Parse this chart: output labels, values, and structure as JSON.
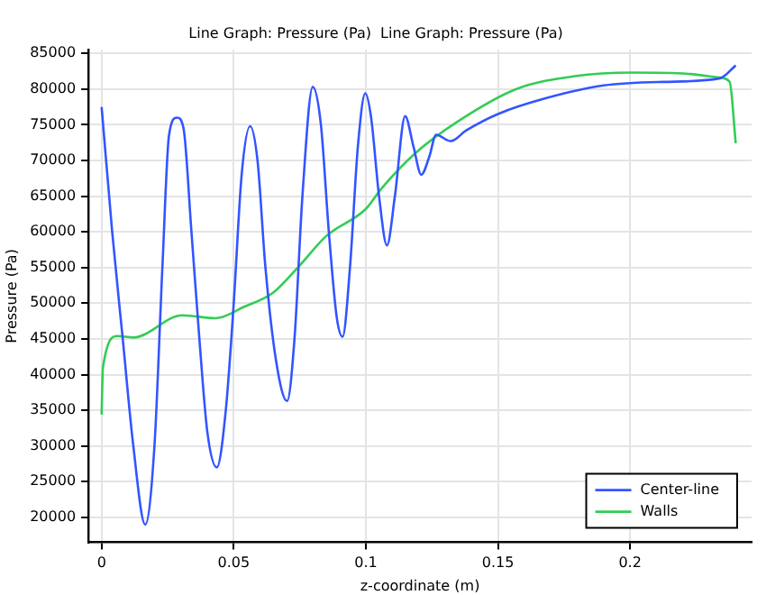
{
  "chart_data": {
    "type": "line",
    "title": "Line Graph: Pressure (Pa)  Line Graph: Pressure (Pa)",
    "xlabel": "z-coordinate (m)",
    "ylabel": "Pressure (Pa)",
    "xlim": [
      -0.005,
      0.246
    ],
    "ylim": [
      16500,
      85500
    ],
    "xticks": [
      0,
      0.05,
      0.1,
      0.15,
      0.2
    ],
    "yticks": [
      20000,
      25000,
      30000,
      35000,
      40000,
      45000,
      50000,
      55000,
      60000,
      65000,
      70000,
      75000,
      80000,
      85000
    ],
    "grid": true,
    "legend": "bottom right",
    "marker": "none",
    "line_style": "solid",
    "series": [
      {
        "name": "Center-line",
        "color": "#3355ff",
        "x": [
          0,
          0.004,
          0.008,
          0.012,
          0.0165,
          0.02,
          0.023,
          0.0255,
          0.0285,
          0.031,
          0.034,
          0.037,
          0.04,
          0.0436,
          0.047,
          0.05,
          0.053,
          0.0562,
          0.059,
          0.062,
          0.066,
          0.0702,
          0.073,
          0.076,
          0.0799,
          0.083,
          0.086,
          0.089,
          0.0912,
          0.094,
          0.097,
          0.0998,
          0.102,
          0.105,
          0.108,
          0.111,
          0.1149,
          0.118,
          0.121,
          0.124,
          0.1266,
          0.1321,
          0.138,
          0.15,
          0.168,
          0.19,
          0.2125,
          0.234,
          0.24
        ],
        "values": [
          77500,
          60000,
          45000,
          30000,
          19000,
          30000,
          55000,
          73500,
          76000,
          74500,
          60000,
          45000,
          32000,
          27000,
          35000,
          50000,
          68000,
          74800,
          70000,
          55000,
          42000,
          36300,
          45000,
          65000,
          80300,
          75000,
          60000,
          48000,
          45300,
          55000,
          72000,
          79400,
          76000,
          65000,
          58100,
          65000,
          76200,
          72000,
          68000,
          70500,
          73600,
          72700,
          74200,
          76500,
          78700,
          80500,
          81000,
          81500,
          83300
        ]
      },
      {
        "name": "Walls",
        "color": "#33cc55",
        "x": [
          0,
          0.0005,
          0.006,
          0.012,
          0.0305,
          0.0432,
          0.054,
          0.065,
          0.075,
          0.085,
          0.1,
          0.106,
          0.119,
          0.135,
          0.157,
          0.179,
          0.201,
          0.223,
          0.234,
          0.2377,
          0.24
        ],
        "values": [
          34400,
          41000,
          45400,
          45200,
          48300,
          47900,
          49500,
          51500,
          55300,
          59400,
          63200,
          66100,
          71100,
          75500,
          80000,
          81800,
          82300,
          82100,
          81600,
          81000,
          72400
        ]
      }
    ]
  }
}
